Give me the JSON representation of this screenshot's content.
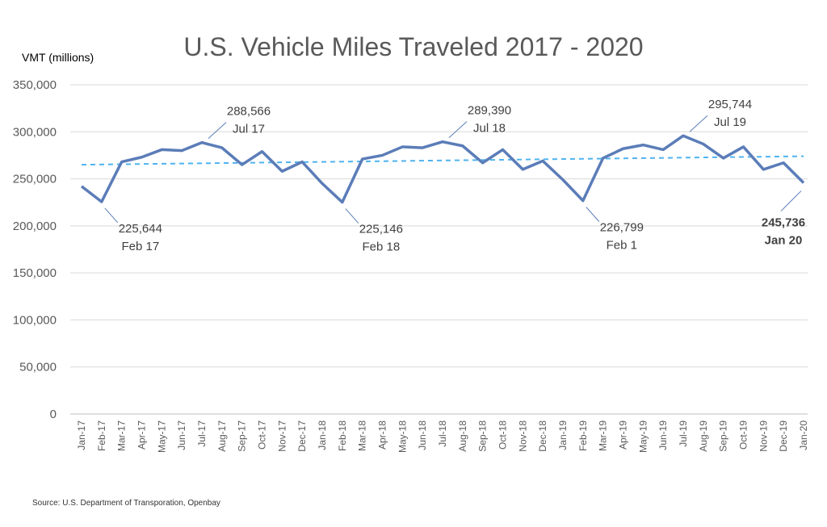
{
  "chart_data": {
    "type": "line",
    "title": "U.S. Vehicle Miles Traveled 2017 - 2020",
    "ylabel": "VMT (millions)",
    "xlabel": "",
    "ylim": [
      0,
      350000
    ],
    "yticks": [
      0,
      50000,
      100000,
      150000,
      200000,
      250000,
      300000,
      350000
    ],
    "ytick_labels": [
      "0",
      "50,000",
      "100,000",
      "150,000",
      "200,000",
      "250,000",
      "300,000",
      "350,000"
    ],
    "grid": "horizontal",
    "categories": [
      "Jan-17",
      "Feb-17",
      "Mar-17",
      "Apr-17",
      "May-17",
      "Jun-17",
      "Jul-17",
      "Aug-17",
      "Sep-17",
      "Oct-17",
      "Nov-17",
      "Dec-17",
      "Jan-18",
      "Feb-18",
      "Mar-18",
      "Apr-18",
      "May-18",
      "Jun-18",
      "Jul-18",
      "Aug-18",
      "Sep-18",
      "Oct-18",
      "Nov-18",
      "Dec-18",
      "Jan-19",
      "Feb-19",
      "Mar-19",
      "Apr-19",
      "May-19",
      "Jun-19",
      "Jul-19",
      "Aug-19",
      "Sep-19",
      "Oct-19",
      "Nov-19",
      "Dec-19",
      "Jan-20"
    ],
    "series": [
      {
        "values": [
          242000,
          225644,
          268000,
          273000,
          281000,
          280000,
          288566,
          283000,
          265000,
          279000,
          258000,
          268000,
          245000,
          225146,
          271000,
          275000,
          284000,
          283000,
          289390,
          285000,
          267000,
          281000,
          260000,
          269000,
          249000,
          226799,
          272000,
          282000,
          286000,
          281000,
          295744,
          287000,
          272000,
          284000,
          260000,
          267000,
          245736
        ],
        "color": "#5B7DB8"
      },
      {
        "type": "trendline",
        "style": "dashed",
        "values_start_end": [
          265000,
          274000
        ],
        "color": "#4FB3F0"
      }
    ],
    "annotations": [
      {
        "index": 1,
        "value": "225,644",
        "label": "Feb 17"
      },
      {
        "index": 6,
        "value": "288,566",
        "label": "Jul 17"
      },
      {
        "index": 13,
        "value": "225,146",
        "label": "Feb 18"
      },
      {
        "index": 18,
        "value": "289,390",
        "label": "Jul 18"
      },
      {
        "index": 25,
        "value": "226,799",
        "label": "Feb 1"
      },
      {
        "index": 30,
        "value": "295,744",
        "label": "Jul 19"
      },
      {
        "index": 36,
        "value": "245,736",
        "label": "Jan 20"
      }
    ]
  },
  "source": "Source: U.S. Department of Transporation, Openbay"
}
